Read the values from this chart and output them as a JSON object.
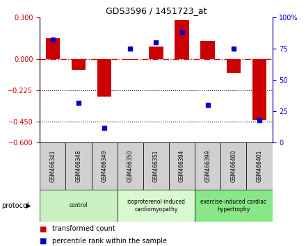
{
  "title": "GDS3596 / 1451723_at",
  "samples": [
    "GSM466341",
    "GSM466348",
    "GSM466349",
    "GSM466350",
    "GSM466351",
    "GSM466394",
    "GSM466399",
    "GSM466400",
    "GSM466401"
  ],
  "transformed_count": [
    0.15,
    -0.08,
    -0.27,
    -0.005,
    0.09,
    0.28,
    0.13,
    -0.1,
    -0.44
  ],
  "percentile_rank": [
    82,
    32,
    12,
    75,
    80,
    88,
    30,
    75,
    18
  ],
  "groups": [
    {
      "label": "control",
      "start": 0,
      "end": 3,
      "color": "#c8f0c0"
    },
    {
      "label": "isoproterenol-induced\ncardiomyopathy",
      "start": 3,
      "end": 6,
      "color": "#d8f8d0"
    },
    {
      "label": "exercise-induced cardiac\nhypertrophy",
      "start": 6,
      "end": 9,
      "color": "#88e888"
    }
  ],
  "bar_color": "#cc0000",
  "dot_color": "#0000cc",
  "ylim_left": [
    -0.6,
    0.3
  ],
  "ylim_right": [
    0,
    100
  ],
  "yticks_left": [
    0.3,
    0.0,
    -0.225,
    -0.45,
    -0.6
  ],
  "yticks_right": [
    100,
    75,
    50,
    25,
    0
  ],
  "hline_color": "#cc0000",
  "dotline1": -0.225,
  "dotline2": -0.45,
  "protocol_label": "protocol",
  "bar_width": 0.55,
  "sample_box_color": "#d0d0d0",
  "fig_bg": "#ffffff"
}
